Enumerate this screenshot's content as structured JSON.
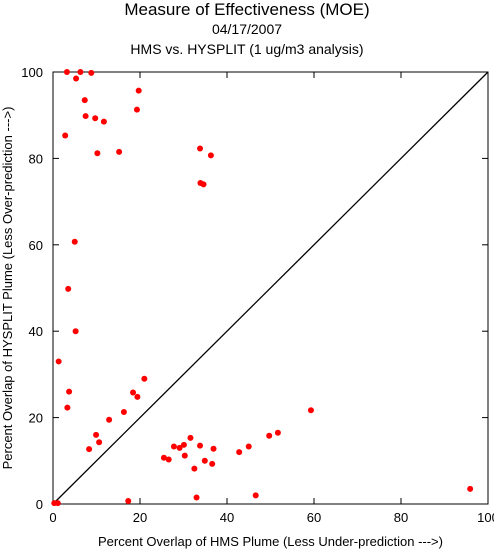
{
  "chart_data": {
    "type": "scatter",
    "title": "Measure of Effectiveness (MOE)",
    "subtitle": "04/17/2007",
    "subtitle2": "HMS vs. HYSPLIT  (1 ug/m3 analysis)",
    "xlabel": "Percent Overlap of HMS Plume (Less Under-prediction --->)",
    "ylabel": "Percent Overlap of HYSPLIT Plume (Less Over-prediction --->)",
    "xlim": [
      0,
      100
    ],
    "ylim": [
      0,
      100
    ],
    "xticks": [
      "0",
      "20",
      "40",
      "60",
      "80",
      "100"
    ],
    "yticks": [
      "0",
      "20",
      "40",
      "60",
      "80",
      "100"
    ],
    "grid": false,
    "reference_line": "y = x",
    "point_color": "#ff0000",
    "line_color": "#000000",
    "points": [
      {
        "x": 0.3,
        "y": 0.2
      },
      {
        "x": 1.1,
        "y": 0.2
      },
      {
        "x": 1.3,
        "y": 33.0
      },
      {
        "x": 3.3,
        "y": 22.3
      },
      {
        "x": 3.7,
        "y": 26.0
      },
      {
        "x": 3.5,
        "y": 49.8
      },
      {
        "x": 5.0,
        "y": 60.7
      },
      {
        "x": 5.2,
        "y": 40.0
      },
      {
        "x": 2.8,
        "y": 85.3
      },
      {
        "x": 3.2,
        "y": 100.0
      },
      {
        "x": 5.3,
        "y": 98.5
      },
      {
        "x": 6.3,
        "y": 100.0
      },
      {
        "x": 7.3,
        "y": 93.5
      },
      {
        "x": 7.5,
        "y": 89.8
      },
      {
        "x": 8.8,
        "y": 99.8
      },
      {
        "x": 9.7,
        "y": 89.3
      },
      {
        "x": 10.2,
        "y": 81.2
      },
      {
        "x": 11.7,
        "y": 88.5
      },
      {
        "x": 15.2,
        "y": 81.5
      },
      {
        "x": 19.3,
        "y": 91.3
      },
      {
        "x": 19.7,
        "y": 95.7
      },
      {
        "x": 33.8,
        "y": 82.3
      },
      {
        "x": 36.3,
        "y": 80.7
      },
      {
        "x": 33.9,
        "y": 74.3
      },
      {
        "x": 34.6,
        "y": 74.0
      },
      {
        "x": 8.3,
        "y": 12.7
      },
      {
        "x": 9.9,
        "y": 16.0
      },
      {
        "x": 10.6,
        "y": 14.3
      },
      {
        "x": 12.9,
        "y": 19.5
      },
      {
        "x": 16.3,
        "y": 21.3
      },
      {
        "x": 17.3,
        "y": 0.7
      },
      {
        "x": 18.4,
        "y": 25.8
      },
      {
        "x": 19.4,
        "y": 24.8
      },
      {
        "x": 21.0,
        "y": 29.0
      },
      {
        "x": 25.5,
        "y": 10.7
      },
      {
        "x": 26.6,
        "y": 10.3
      },
      {
        "x": 27.8,
        "y": 13.3
      },
      {
        "x": 29.1,
        "y": 13.0
      },
      {
        "x": 30.1,
        "y": 13.7
      },
      {
        "x": 30.3,
        "y": 11.2
      },
      {
        "x": 31.6,
        "y": 15.3
      },
      {
        "x": 32.5,
        "y": 8.2
      },
      {
        "x": 33.0,
        "y": 1.5
      },
      {
        "x": 33.8,
        "y": 13.5
      },
      {
        "x": 34.9,
        "y": 10.0
      },
      {
        "x": 36.6,
        "y": 9.3
      },
      {
        "x": 36.9,
        "y": 12.8
      },
      {
        "x": 42.8,
        "y": 12.0
      },
      {
        "x": 45.0,
        "y": 13.3
      },
      {
        "x": 46.6,
        "y": 2.0
      },
      {
        "x": 49.7,
        "y": 15.8
      },
      {
        "x": 51.7,
        "y": 16.5
      },
      {
        "x": 59.3,
        "y": 21.7
      },
      {
        "x": 95.9,
        "y": 3.5
      }
    ]
  }
}
